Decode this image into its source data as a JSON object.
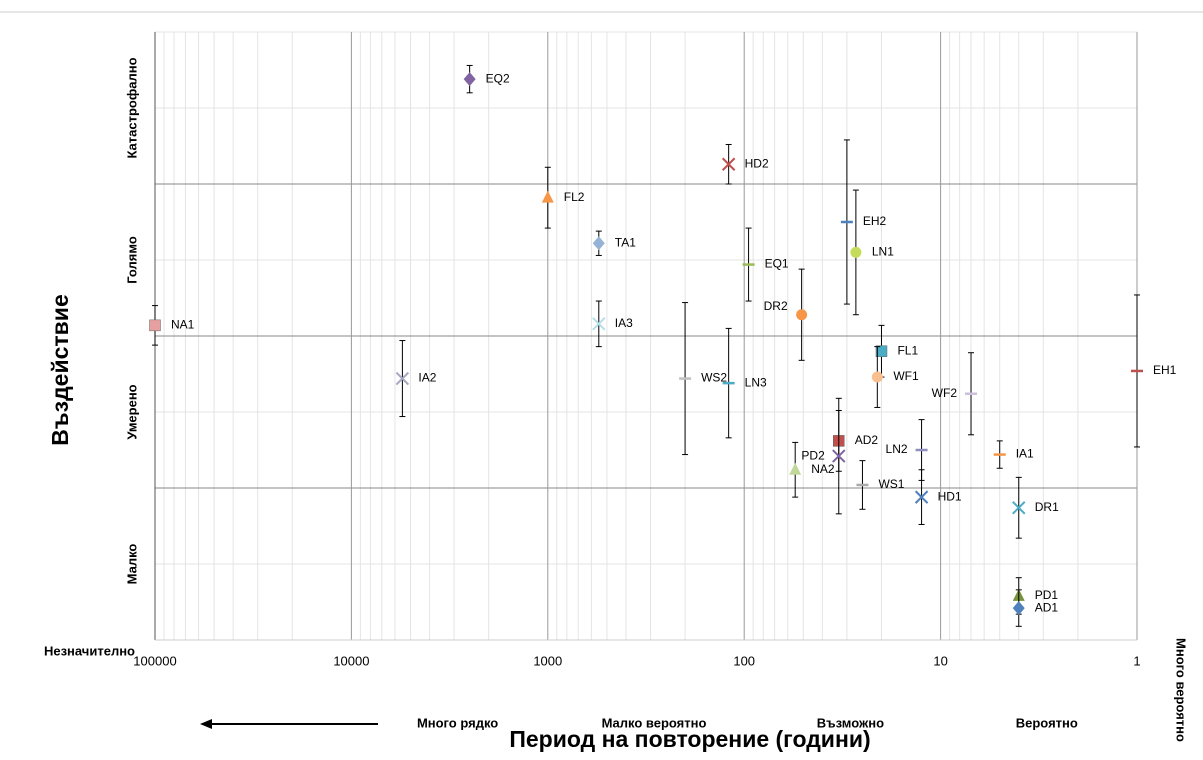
{
  "chart_data": {
    "type": "scatter",
    "x_label": "Период на повторение (години)",
    "y_label": "Въздействие",
    "xlim": [
      100000,
      1
    ],
    "xticks": [
      100000,
      10000,
      1000,
      100,
      10,
      1
    ],
    "log_x": true,
    "ylim": [
      0,
      4
    ],
    "ygrid": [
      1,
      2,
      3
    ],
    "ycategory_labels": [
      {
        "value": 0,
        "label": "Незначително"
      },
      {
        "value": 0.5,
        "label": "Малко"
      },
      {
        "value": 1.5,
        "label": "Умерено"
      },
      {
        "value": 2.5,
        "label": "Голямо"
      },
      {
        "value": 3.5,
        "label": "Катастрофално"
      }
    ],
    "x_band_labels": [
      "Много рядко",
      "Малко вероятно",
      "Възможно",
      "Вероятно",
      "Много вероятно"
    ],
    "grid": true,
    "series": [
      {
        "name": "EQ2",
        "color": "#8064a2",
        "marker": "diamond",
        "x": [
          2500
        ],
        "values": [
          3.69
        ],
        "errors": [
          0.09
        ]
      },
      {
        "name": "HD2",
        "color": "#c0504d",
        "marker": "x",
        "x": [
          120
        ],
        "values": [
          3.13
        ],
        "errors": [
          0.13
        ]
      },
      {
        "name": "FL2",
        "color": "#f79646",
        "marker": "triangle",
        "x": [
          1000
        ],
        "values": [
          2.91
        ],
        "errors": [
          0.2
        ]
      },
      {
        "name": "TA1",
        "color": "#95b3d7",
        "marker": "diamond",
        "x": [
          550
        ],
        "values": [
          2.61
        ],
        "errors": [
          0.08
        ]
      },
      {
        "name": "EQ1",
        "color": "#9bbb59",
        "marker": "dash",
        "x": [
          95
        ],
        "values": [
          2.47
        ],
        "errors": [
          0.24
        ]
      },
      {
        "name": "EH2",
        "color": "#4f81bd",
        "marker": "dash",
        "x": [
          30
        ],
        "values": [
          2.75
        ],
        "errors": [
          0.54
        ]
      },
      {
        "name": "LN1",
        "color": "#c4dc5a",
        "marker": "circle",
        "x": [
          27
        ],
        "values": [
          2.55
        ],
        "errors": [
          0.41
        ]
      },
      {
        "name": "DR2",
        "color": "#f79646",
        "marker": "circle",
        "x": [
          51
        ],
        "values": [
          2.14
        ],
        "errors": [
          0.3
        ]
      },
      {
        "name": "NA1",
        "color": "#e6a0a0",
        "marker": "square",
        "x": [
          100000
        ],
        "values": [
          2.07
        ],
        "errors": [
          0.13
        ]
      },
      {
        "name": "IA3",
        "color": "#b7dee8",
        "marker": "x",
        "x": [
          550
        ],
        "values": [
          2.08
        ],
        "errors": [
          0.15
        ]
      },
      {
        "name": "FL1",
        "color": "#4bacc6",
        "marker": "square",
        "x": [
          20
        ],
        "values": [
          1.9
        ],
        "errors": [
          0.17
        ]
      },
      {
        "name": "WF1",
        "color": "#fabf8f",
        "marker": "circle",
        "x": [
          21
        ],
        "values": [
          1.73
        ],
        "errors": [
          0.2
        ]
      },
      {
        "name": "IA2",
        "color": "#a6a6c0",
        "marker": "x",
        "x": [
          5500
        ],
        "values": [
          1.72
        ],
        "errors": [
          0.25
        ]
      },
      {
        "name": "WS2",
        "color": "#c0c0c0",
        "marker": "dash",
        "x": [
          200
        ],
        "values": [
          1.72
        ],
        "errors": [
          0.5
        ]
      },
      {
        "name": "LN3",
        "color": "#4bacc6",
        "marker": "dash",
        "x": [
          120
        ],
        "values": [
          1.69
        ],
        "errors": [
          0.36
        ]
      },
      {
        "name": "EH1",
        "color": "#c0504d",
        "marker": "dash",
        "x": [
          1
        ],
        "values": [
          1.77
        ],
        "errors": [
          0.5
        ]
      },
      {
        "name": "WF2",
        "color": "#ccc0da",
        "marker": "dash",
        "x": [
          7
        ],
        "values": [
          1.62
        ],
        "errors": [
          0.27
        ]
      },
      {
        "name": "AD2",
        "color": "#c0504d",
        "marker": "square",
        "x": [
          33
        ],
        "values": [
          1.31
        ],
        "errors": [
          0.2
        ]
      },
      {
        "name": "PD2",
        "color": "#8064a2",
        "marker": "x",
        "x": [
          33
        ],
        "values": [
          1.21
        ],
        "errors": [
          0.38
        ]
      },
      {
        "name": "LN2",
        "color": "#8e8ec0",
        "marker": "dash",
        "x": [
          12.5
        ],
        "values": [
          1.25
        ],
        "errors": [
          0.2
        ]
      },
      {
        "name": "IA1",
        "color": "#f79646",
        "marker": "dash",
        "x": [
          5
        ],
        "values": [
          1.22
        ],
        "errors": [
          0.09
        ]
      },
      {
        "name": "NA2",
        "color": "#c3d69b",
        "marker": "triangle",
        "x": [
          55
        ],
        "values": [
          1.12
        ],
        "errors": [
          0.18
        ]
      },
      {
        "name": "WS1",
        "color": "#aaaaaa",
        "marker": "dash",
        "x": [
          25
        ],
        "values": [
          1.02
        ],
        "errors": [
          0.16
        ]
      },
      {
        "name": "HD1",
        "color": "#4f81bd",
        "marker": "x",
        "x": [
          12.5
        ],
        "values": [
          0.94
        ],
        "errors": [
          0.18
        ]
      },
      {
        "name": "DR1",
        "color": "#4bacc6",
        "marker": "x",
        "x": [
          4
        ],
        "values": [
          0.87
        ],
        "errors": [
          0.2
        ]
      },
      {
        "name": "PD1",
        "color": "#77933c",
        "marker": "triangle",
        "x": [
          4
        ],
        "values": [
          0.29
        ],
        "errors": [
          0.12
        ]
      },
      {
        "name": "AD1",
        "color": "#4f81bd",
        "marker": "diamond",
        "x": [
          4
        ],
        "values": [
          0.21
        ],
        "errors": [
          0.12
        ]
      }
    ]
  }
}
